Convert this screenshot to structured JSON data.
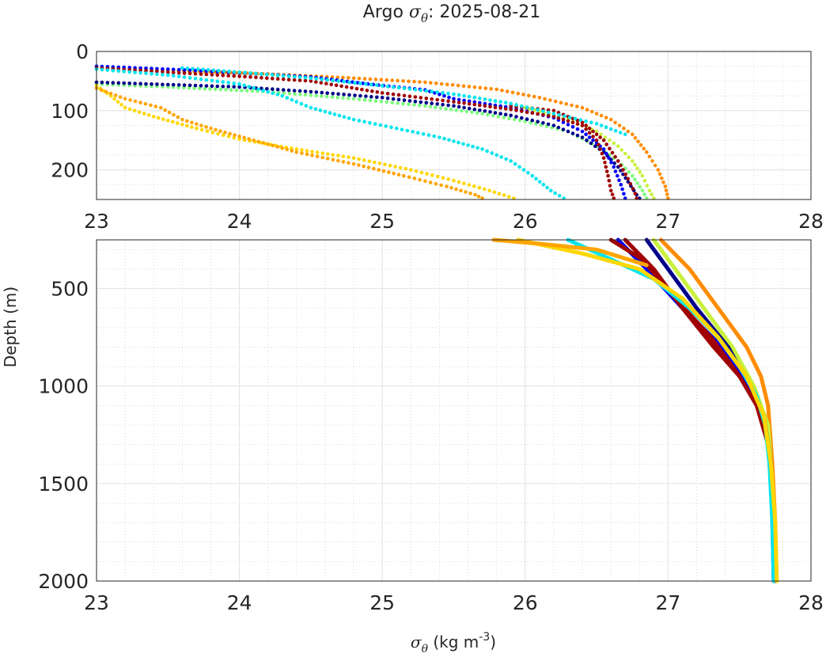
{
  "chart_data": [
    {
      "type": "scatter",
      "panel": "top",
      "title_prefix": "Argo ",
      "title_symbol": "σ",
      "title_symbol_sub": "θ",
      "title_suffix": ": 2025-08-21",
      "xlim": [
        23,
        28
      ],
      "ylim": [
        0,
        250
      ],
      "y_reversed": true,
      "xticks": [
        "23",
        "24",
        "25",
        "26",
        "27",
        "28"
      ],
      "xtick_values": [
        23,
        24,
        25,
        26,
        27,
        28
      ],
      "yticks": [
        "0",
        "100",
        "200"
      ],
      "ytick_values": [
        0,
        100,
        200
      ],
      "grid": true,
      "minor_grid": true,
      "series": [
        {
          "name": "profile-orange",
          "color": "#ff8c00",
          "points": [
            [
              23.0,
              28
            ],
            [
              23.5,
              32
            ],
            [
              24.2,
              38
            ],
            [
              24.8,
              45
            ],
            [
              25.3,
              52
            ],
            [
              25.8,
              64
            ],
            [
              26.1,
              78
            ],
            [
              26.4,
              95
            ],
            [
              26.6,
              115
            ],
            [
              26.75,
              140
            ],
            [
              26.85,
              170
            ],
            [
              26.93,
              200
            ],
            [
              26.98,
              228
            ],
            [
              27.0,
              248
            ]
          ]
        },
        {
          "name": "profile-green",
          "color": "#7cfc7c",
          "points": [
            [
              23.0,
              55
            ],
            [
              23.5,
              60
            ],
            [
              24.2,
              68
            ],
            [
              24.8,
              80
            ],
            [
              25.3,
              92
            ],
            [
              25.7,
              105
            ],
            [
              26.0,
              118
            ],
            [
              26.3,
              135
            ],
            [
              26.5,
              160
            ],
            [
              26.65,
              185
            ],
            [
              26.75,
              210
            ],
            [
              26.82,
              235
            ],
            [
              26.85,
              248
            ]
          ]
        },
        {
          "name": "profile-yellowgreen",
          "color": "#c8f03c",
          "points": [
            [
              26.0,
              95
            ],
            [
              26.3,
              115
            ],
            [
              26.5,
              135
            ],
            [
              26.65,
              160
            ],
            [
              26.75,
              185
            ],
            [
              26.82,
              210
            ],
            [
              26.87,
              235
            ],
            [
              26.9,
              248
            ]
          ]
        },
        {
          "name": "profile-navy",
          "color": "#00008b",
          "points": [
            [
              23.0,
              52
            ],
            [
              23.5,
              56
            ],
            [
              24.0,
              60
            ],
            [
              24.5,
              68
            ],
            [
              25.0,
              78
            ],
            [
              25.5,
              92
            ],
            [
              25.9,
              108
            ],
            [
              26.2,
              125
            ],
            [
              26.4,
              145
            ],
            [
              26.55,
              170
            ],
            [
              26.65,
              195
            ],
            [
              26.72,
              220
            ],
            [
              26.78,
              242
            ],
            [
              26.8,
              248
            ]
          ]
        },
        {
          "name": "profile-blue",
          "color": "#0000ff",
          "points": [
            [
              23.0,
              25
            ],
            [
              23.5,
              30
            ],
            [
              24.0,
              36
            ],
            [
              24.5,
              43
            ],
            [
              24.9,
              55
            ],
            [
              25.3,
              65
            ],
            [
              25.5,
              80
            ],
            [
              25.9,
              95
            ],
            [
              26.2,
              112
            ],
            [
              26.4,
              135
            ],
            [
              26.55,
              165
            ],
            [
              26.62,
              195
            ],
            [
              26.67,
              225
            ],
            [
              26.7,
              248
            ]
          ]
        },
        {
          "name": "profile-darkred",
          "color": "#a00000",
          "points": [
            [
              23.0,
              28
            ],
            [
              23.5,
              35
            ],
            [
              24.0,
              42
            ],
            [
              24.5,
              50
            ],
            [
              25.0,
              70
            ],
            [
              25.5,
              85
            ],
            [
              25.9,
              98
            ],
            [
              26.2,
              110
            ],
            [
              26.4,
              125
            ],
            [
              26.5,
              150
            ],
            [
              26.55,
              180
            ],
            [
              26.58,
              210
            ],
            [
              26.6,
              235
            ],
            [
              26.62,
              248
            ]
          ]
        },
        {
          "name": "profile-darkred-2",
          "color": "#a00000",
          "points": [
            [
              25.9,
              92
            ],
            [
              26.2,
              100
            ],
            [
              26.4,
              120
            ],
            [
              26.55,
              150
            ],
            [
              26.65,
              185
            ],
            [
              26.72,
              215
            ],
            [
              26.77,
              240
            ],
            [
              26.78,
              248
            ]
          ]
        },
        {
          "name": "profile-cyan",
          "color": "#00e5ee",
          "points": [
            [
              23.0,
              30
            ],
            [
              23.5,
              40
            ],
            [
              24.0,
              55
            ],
            [
              24.3,
              75
            ],
            [
              24.5,
              95
            ],
            [
              24.8,
              115
            ],
            [
              25.1,
              130
            ],
            [
              25.4,
              145
            ],
            [
              25.7,
              165
            ],
            [
              25.9,
              185
            ],
            [
              26.05,
              210
            ],
            [
              26.18,
              235
            ],
            [
              26.27,
              248
            ]
          ]
        },
        {
          "name": "profile-cyan-2",
          "color": "#00e5ee",
          "points": [
            [
              23.6,
              28
            ],
            [
              24.0,
              35
            ],
            [
              24.5,
              45
            ],
            [
              25.0,
              58
            ],
            [
              25.5,
              72
            ],
            [
              25.9,
              88
            ],
            [
              26.2,
              105
            ],
            [
              26.5,
              122
            ],
            [
              26.7,
              140
            ]
          ]
        },
        {
          "name": "profile-gold",
          "color": "#ffd700",
          "points": [
            [
              23.0,
              58
            ],
            [
              23.1,
              75
            ],
            [
              23.2,
              95
            ],
            [
              23.4,
              110
            ],
            [
              23.7,
              130
            ],
            [
              24.0,
              148
            ],
            [
              24.4,
              165
            ],
            [
              24.8,
              180
            ],
            [
              25.2,
              200
            ],
            [
              25.5,
              218
            ],
            [
              25.75,
              235
            ],
            [
              25.92,
              248
            ]
          ]
        },
        {
          "name": "profile-orange-2",
          "color": "#ffa500",
          "points": [
            [
              23.0,
              62
            ],
            [
              23.2,
              80
            ],
            [
              23.45,
              95
            ],
            [
              23.6,
              115
            ],
            [
              23.8,
              130
            ],
            [
              24.1,
              150
            ],
            [
              24.4,
              170
            ],
            [
              24.8,
              190
            ],
            [
              25.15,
              210
            ],
            [
              25.45,
              228
            ],
            [
              25.65,
              242
            ],
            [
              25.7,
              248
            ]
          ]
        }
      ]
    },
    {
      "type": "line",
      "panel": "bottom",
      "xlim": [
        23,
        28
      ],
      "ylim": [
        250,
        2000
      ],
      "y_reversed": true,
      "xlabel_symbol": "σ",
      "xlabel_symbol_sub": "θ",
      "xlabel_text": " (kg m",
      "xlabel_sup": "-3",
      "xlabel_close": ")",
      "ylabel": "Depth (m)",
      "xticks": [
        "23",
        "24",
        "25",
        "26",
        "27",
        "28"
      ],
      "xtick_values": [
        23,
        24,
        25,
        26,
        27,
        28
      ],
      "yticks": [
        "500",
        "1000",
        "1500",
        "2000"
      ],
      "ytick_values": [
        500,
        1000,
        1500,
        2000
      ],
      "grid": true,
      "minor_grid": true,
      "series": [
        {
          "name": "profile-orange",
          "color": "#ff8c00",
          "points": [
            [
              26.95,
              250
            ],
            [
              27.15,
              400
            ],
            [
              27.35,
              600
            ],
            [
              27.55,
              800
            ],
            [
              27.65,
              950
            ],
            [
              27.7,
              1100
            ],
            [
              27.73,
              1400
            ],
            [
              27.75,
              1700
            ],
            [
              27.76,
              2000
            ]
          ]
        },
        {
          "name": "profile-yellowgreen",
          "color": "#c8f03c",
          "points": [
            [
              26.9,
              250
            ],
            [
              27.05,
              400
            ],
            [
              27.25,
              600
            ],
            [
              27.45,
              800
            ],
            [
              27.6,
              1000
            ],
            [
              27.7,
              1200
            ],
            [
              27.73,
              1500
            ],
            [
              27.74,
              2000
            ]
          ]
        },
        {
          "name": "profile-navy",
          "color": "#00008b",
          "points": [
            [
              26.85,
              250
            ],
            [
              27.0,
              400
            ],
            [
              27.2,
              600
            ],
            [
              27.42,
              800
            ],
            [
              27.57,
              1000
            ],
            [
              27.67,
              1150
            ],
            [
              27.72,
              1400
            ],
            [
              27.74,
              1700
            ],
            [
              27.75,
              2000
            ]
          ]
        },
        {
          "name": "profile-blue",
          "color": "#0000ff",
          "points": [
            [
              26.65,
              250
            ],
            [
              26.85,
              400
            ],
            [
              27.1,
              600
            ],
            [
              27.38,
              800
            ],
            [
              27.55,
              1000
            ],
            [
              27.67,
              1150
            ],
            [
              27.72,
              1400
            ],
            [
              27.74,
              2000
            ]
          ]
        },
        {
          "name": "profile-darkred",
          "color": "#a00000",
          "points": [
            [
              26.7,
              250
            ],
            [
              26.9,
              400
            ],
            [
              27.1,
              600
            ],
            [
              27.32,
              800
            ],
            [
              27.5,
              950
            ],
            [
              27.62,
              1100
            ],
            [
              27.7,
              1300
            ],
            [
              27.73,
              1600
            ],
            [
              27.74,
              2000
            ]
          ]
        },
        {
          "name": "profile-darkred-2",
          "color": "#a00000",
          "points": [
            [
              26.6,
              250
            ],
            [
              26.82,
              350
            ],
            [
              27.05,
              550
            ],
            [
              27.3,
              750
            ],
            [
              27.5,
              950
            ]
          ]
        },
        {
          "name": "profile-cyan",
          "color": "#00e5ee",
          "points": [
            [
              26.3,
              250
            ],
            [
              26.6,
              350
            ],
            [
              26.9,
              450
            ],
            [
              27.15,
              600
            ],
            [
              27.35,
              750
            ],
            [
              27.5,
              900
            ],
            [
              27.62,
              1050
            ],
            [
              27.68,
              1200
            ],
            [
              27.71,
              1400
            ],
            [
              27.73,
              1700
            ],
            [
              27.74,
              2000
            ]
          ]
        },
        {
          "name": "profile-gold",
          "color": "#ffd700",
          "points": [
            [
              25.95,
              250
            ],
            [
              26.4,
              320
            ],
            [
              26.8,
              400
            ],
            [
              27.1,
              550
            ],
            [
              27.35,
              750
            ],
            [
              27.55,
              950
            ],
            [
              27.67,
              1150
            ],
            [
              27.72,
              1400
            ],
            [
              27.75,
              1700
            ],
            [
              27.76,
              2000
            ]
          ]
        },
        {
          "name": "profile-orange-2",
          "color": "#ffa500",
          "points": [
            [
              25.78,
              250
            ],
            [
              26.1,
              270
            ],
            [
              26.5,
              300
            ],
            [
              26.85,
              380
            ]
          ]
        }
      ]
    }
  ]
}
